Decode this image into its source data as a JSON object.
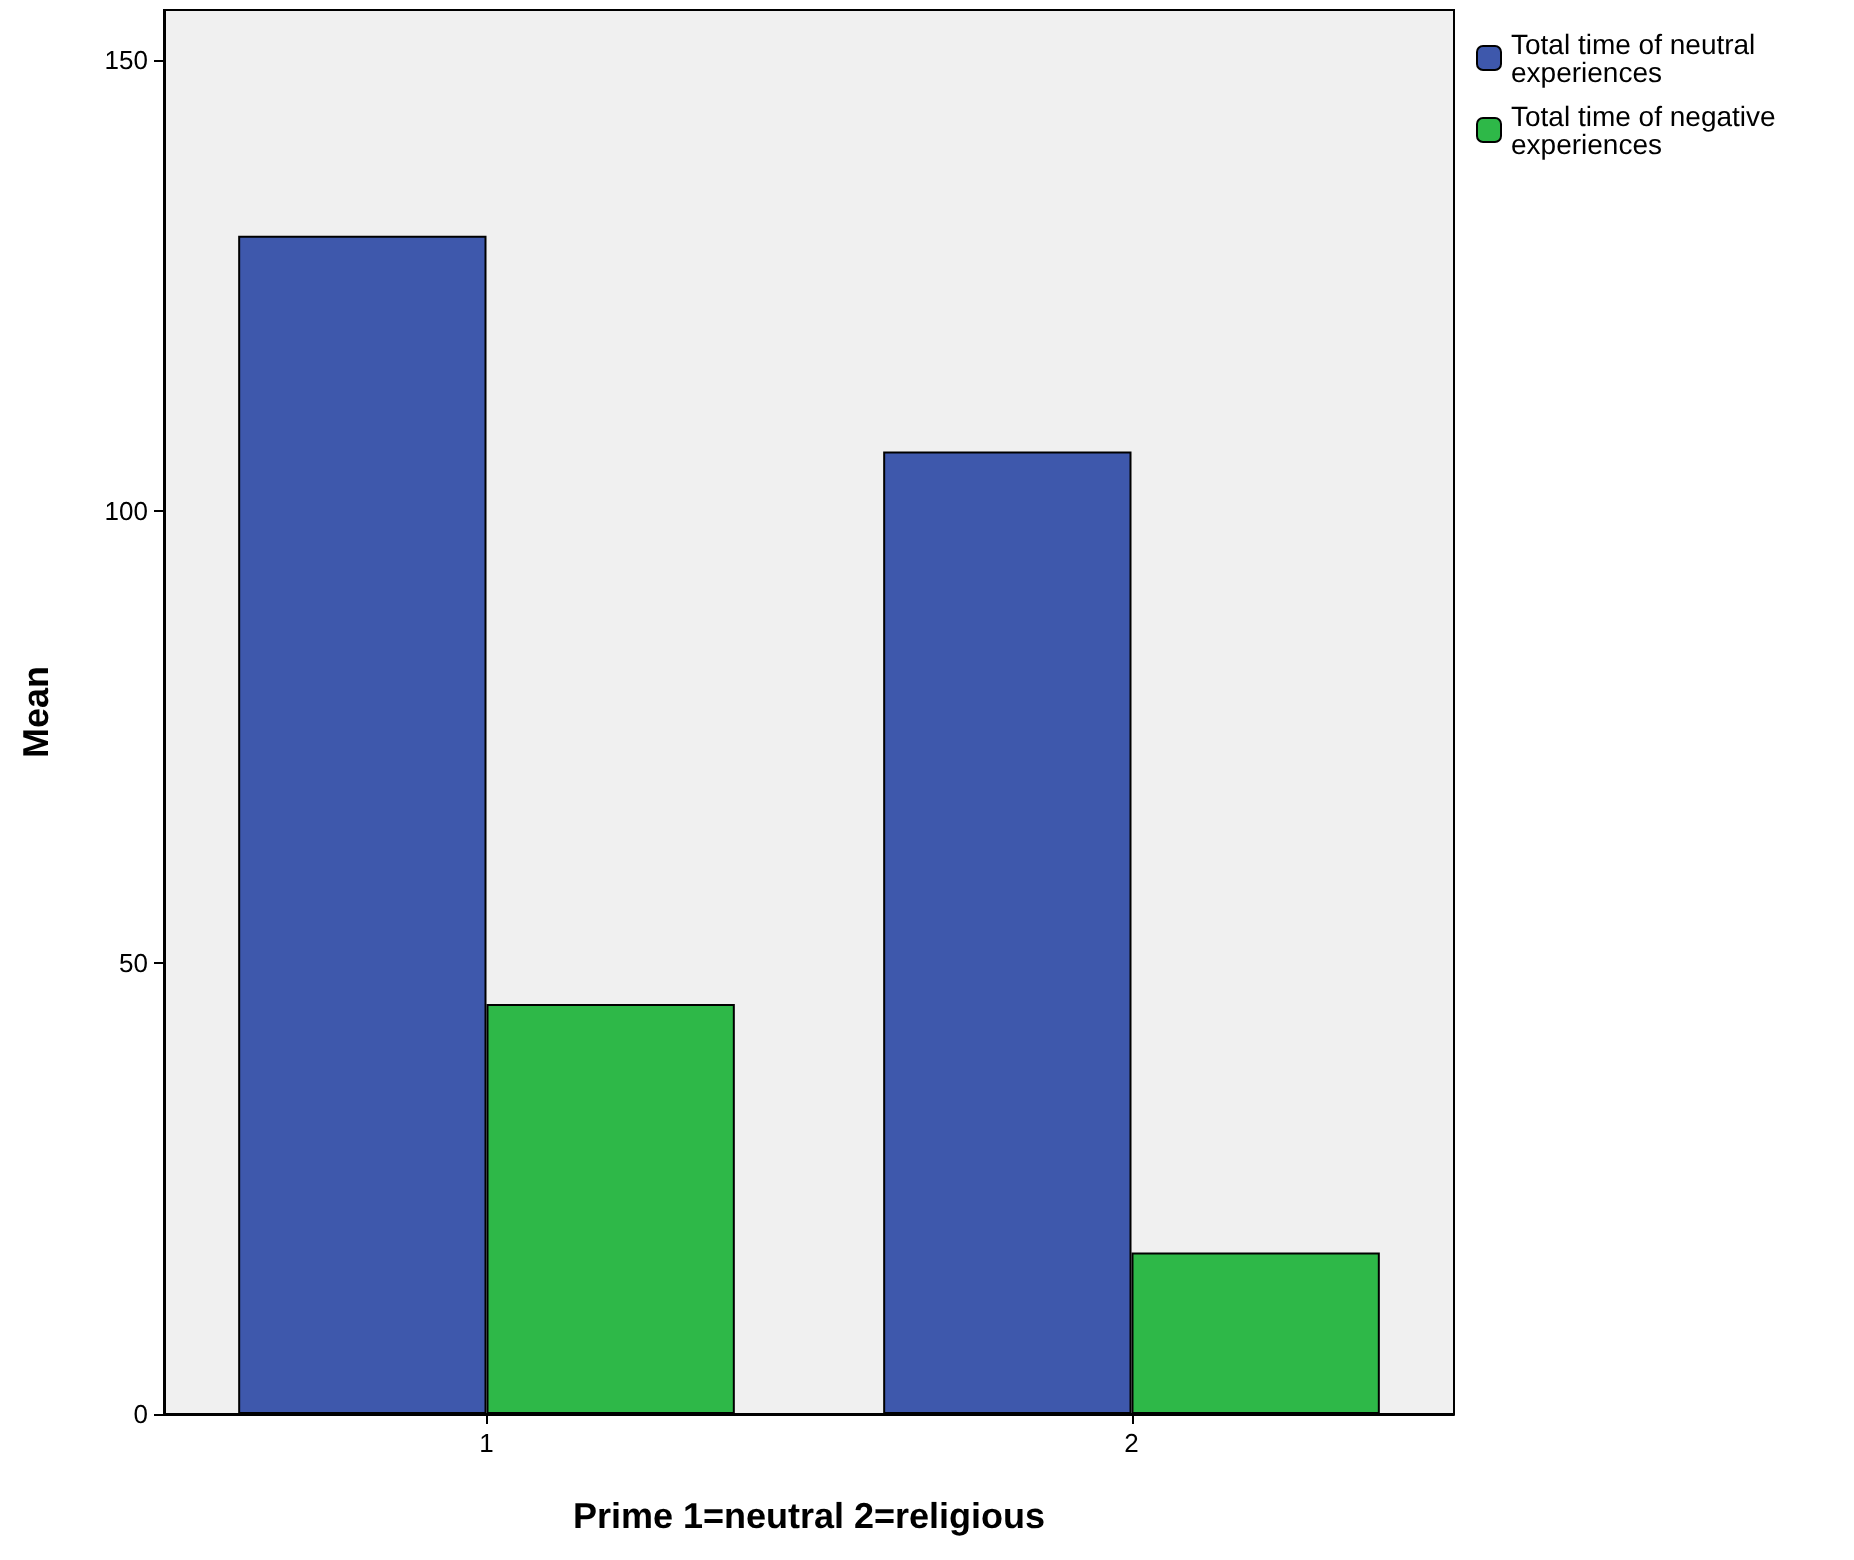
{
  "chart_data": {
    "type": "bar",
    "xlabel": "Prime 1=neutral 2=religious",
    "ylabel": "Mean",
    "categories": [
      "1",
      "2"
    ],
    "series": [
      {
        "name": "Total time of neutral experiences",
        "color": "#3e58ac",
        "values": [
          130.5,
          106.6
        ]
      },
      {
        "name": "Total time of negative experiences",
        "color": "#2eb848",
        "values": [
          45.4,
          17.9
        ]
      }
    ],
    "ylim": [
      0,
      155.5
    ],
    "yticks": [
      0,
      50,
      100,
      150
    ],
    "grid": false,
    "legend": "top right"
  }
}
